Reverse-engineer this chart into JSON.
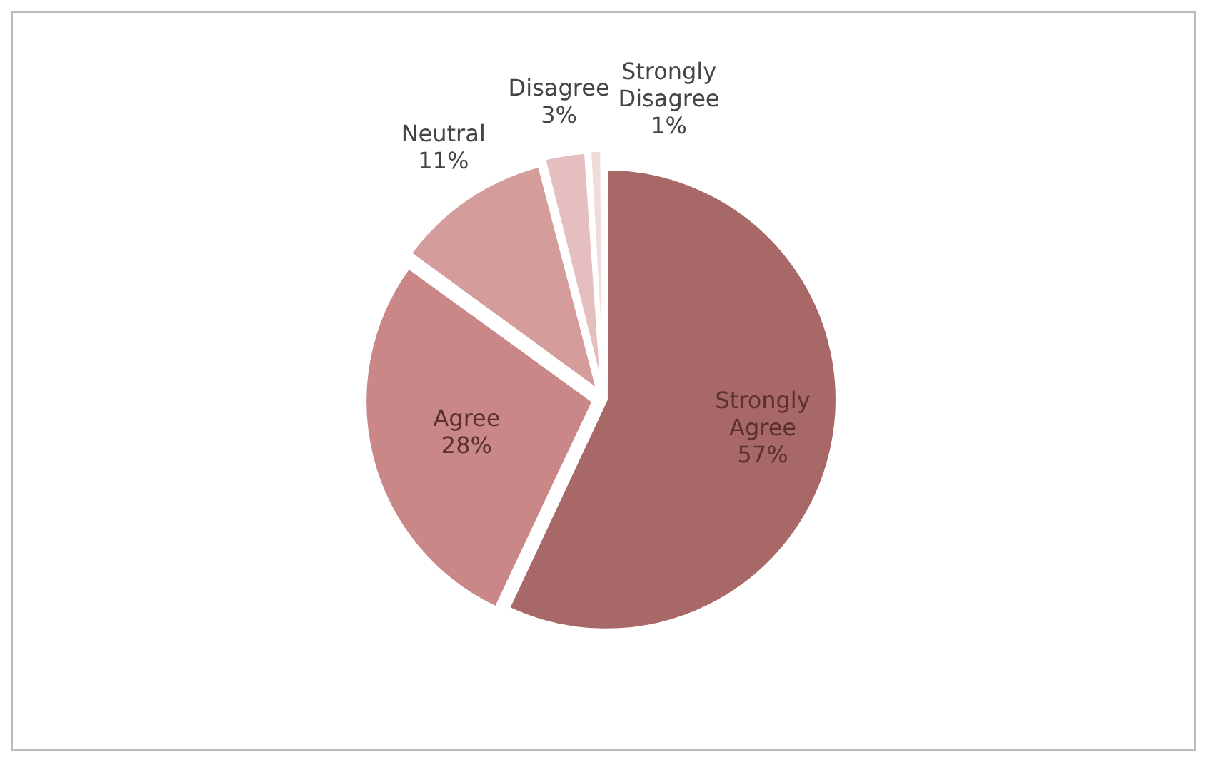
{
  "chart_data": {
    "type": "pie",
    "categories": [
      "Strongly Agree",
      "Agree",
      "Neutral",
      "Disagree",
      "Strongly Disagree"
    ],
    "values": [
      57,
      28,
      11,
      3,
      1
    ],
    "value_labels": [
      "57%",
      "28%",
      "11%",
      "3%",
      "1%"
    ],
    "colors": [
      "#a86868",
      "#c98787",
      "#d59c9c",
      "#e5bfbf",
      "#f1dcdc"
    ],
    "legend": false
  }
}
